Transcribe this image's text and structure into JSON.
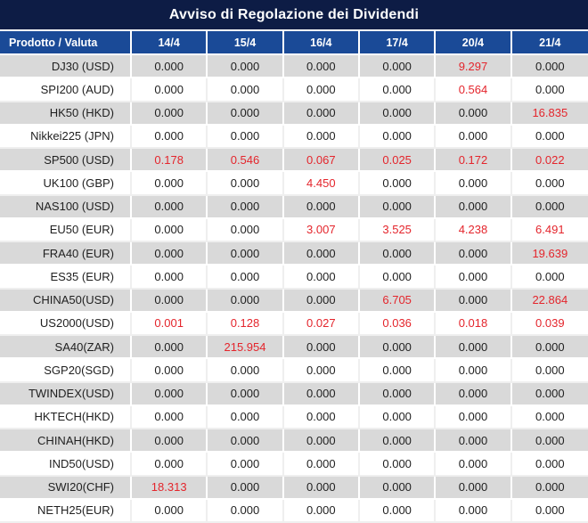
{
  "title": "Avviso di Regolazione dei Dividendi",
  "colors": {
    "title_bg": "#0D1C45",
    "header_bg": "#1A4A97",
    "header_text": "#FFFFFF",
    "stripe": "#D9D9D9",
    "text": "#1F1F1F",
    "red": "#E4252C"
  },
  "table": {
    "header": [
      "Prodotto / Valuta",
      "14/4",
      "15/4",
      "16/4",
      "17/4",
      "20/4",
      "21/4"
    ],
    "rows": [
      {
        "product": "DJ30 (USD)",
        "values": [
          "0.000",
          "0.000",
          "0.000",
          "0.000",
          "9.297",
          "0.000"
        ],
        "red": [
          false,
          false,
          false,
          false,
          true,
          false
        ]
      },
      {
        "product": "SPI200 (AUD)",
        "values": [
          "0.000",
          "0.000",
          "0.000",
          "0.000",
          "0.564",
          "0.000"
        ],
        "red": [
          false,
          false,
          false,
          false,
          true,
          false
        ]
      },
      {
        "product": "HK50 (HKD)",
        "values": [
          "0.000",
          "0.000",
          "0.000",
          "0.000",
          "0.000",
          "16.835"
        ],
        "red": [
          false,
          false,
          false,
          false,
          false,
          true
        ]
      },
      {
        "product": "Nikkei225 (JPN)",
        "values": [
          "0.000",
          "0.000",
          "0.000",
          "0.000",
          "0.000",
          "0.000"
        ],
        "red": [
          false,
          false,
          false,
          false,
          false,
          false
        ]
      },
      {
        "product": "SP500 (USD)",
        "values": [
          "0.178",
          "0.546",
          "0.067",
          "0.025",
          "0.172",
          "0.022"
        ],
        "red": [
          true,
          true,
          true,
          true,
          true,
          true
        ]
      },
      {
        "product": "UK100 (GBP)",
        "values": [
          "0.000",
          "0.000",
          "4.450",
          "0.000",
          "0.000",
          "0.000"
        ],
        "red": [
          false,
          false,
          true,
          false,
          false,
          false
        ]
      },
      {
        "product": "NAS100 (USD)",
        "values": [
          "0.000",
          "0.000",
          "0.000",
          "0.000",
          "0.000",
          "0.000"
        ],
        "red": [
          false,
          false,
          false,
          false,
          false,
          false
        ]
      },
      {
        "product": "EU50 (EUR)",
        "values": [
          "0.000",
          "0.000",
          "3.007",
          "3.525",
          "4.238",
          "6.491"
        ],
        "red": [
          false,
          false,
          true,
          true,
          true,
          true
        ]
      },
      {
        "product": "FRA40 (EUR)",
        "values": [
          "0.000",
          "0.000",
          "0.000",
          "0.000",
          "0.000",
          "19.639"
        ],
        "red": [
          false,
          false,
          false,
          false,
          false,
          true
        ]
      },
      {
        "product": "ES35 (EUR)",
        "values": [
          "0.000",
          "0.000",
          "0.000",
          "0.000",
          "0.000",
          "0.000"
        ],
        "red": [
          false,
          false,
          false,
          false,
          false,
          false
        ]
      },
      {
        "product": "CHINA50(USD)",
        "values": [
          "0.000",
          "0.000",
          "0.000",
          "6.705",
          "0.000",
          "22.864"
        ],
        "red": [
          false,
          false,
          false,
          true,
          false,
          true
        ]
      },
      {
        "product": "US2000(USD)",
        "values": [
          "0.001",
          "0.128",
          "0.027",
          "0.036",
          "0.018",
          "0.039"
        ],
        "red": [
          true,
          true,
          true,
          true,
          true,
          true
        ]
      },
      {
        "product": "SA40(ZAR)",
        "values": [
          "0.000",
          "215.954",
          "0.000",
          "0.000",
          "0.000",
          "0.000"
        ],
        "red": [
          false,
          true,
          false,
          false,
          false,
          false
        ]
      },
      {
        "product": "SGP20(SGD)",
        "values": [
          "0.000",
          "0.000",
          "0.000",
          "0.000",
          "0.000",
          "0.000"
        ],
        "red": [
          false,
          false,
          false,
          false,
          false,
          false
        ]
      },
      {
        "product": "TWINDEX(USD)",
        "values": [
          "0.000",
          "0.000",
          "0.000",
          "0.000",
          "0.000",
          "0.000"
        ],
        "red": [
          false,
          false,
          false,
          false,
          false,
          false
        ]
      },
      {
        "product": "HKTECH(HKD)",
        "values": [
          "0.000",
          "0.000",
          "0.000",
          "0.000",
          "0.000",
          "0.000"
        ],
        "red": [
          false,
          false,
          false,
          false,
          false,
          false
        ]
      },
      {
        "product": "CHINAH(HKD)",
        "values": [
          "0.000",
          "0.000",
          "0.000",
          "0.000",
          "0.000",
          "0.000"
        ],
        "red": [
          false,
          false,
          false,
          false,
          false,
          false
        ]
      },
      {
        "product": "IND50(USD)",
        "values": [
          "0.000",
          "0.000",
          "0.000",
          "0.000",
          "0.000",
          "0.000"
        ],
        "red": [
          false,
          false,
          false,
          false,
          false,
          false
        ]
      },
      {
        "product": "SWI20(CHF)",
        "values": [
          "18.313",
          "0.000",
          "0.000",
          "0.000",
          "0.000",
          "0.000"
        ],
        "red": [
          true,
          false,
          false,
          false,
          false,
          false
        ]
      },
      {
        "product": "NETH25(EUR)",
        "values": [
          "0.000",
          "0.000",
          "0.000",
          "0.000",
          "0.000",
          "0.000"
        ],
        "red": [
          false,
          false,
          false,
          false,
          false,
          false
        ]
      }
    ]
  }
}
